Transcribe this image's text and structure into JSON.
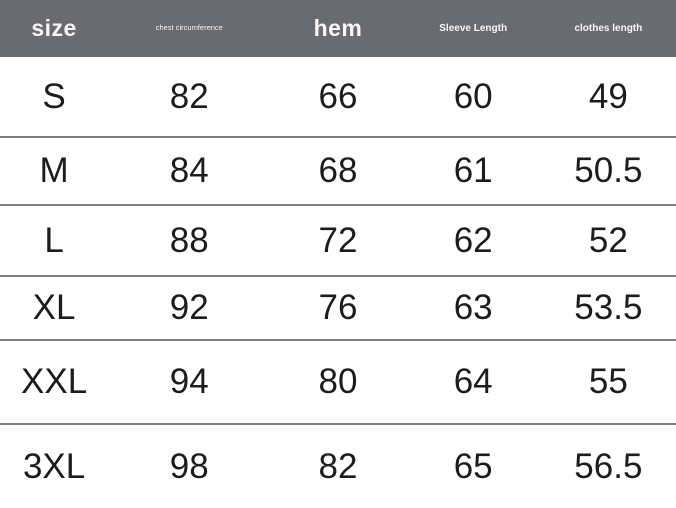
{
  "colors": {
    "header_bg": "#696b70",
    "header_text": "#f7f7f7",
    "body_text": "#1c1c1c",
    "divider": "#7e7e7e",
    "background": "#ffffff"
  },
  "chart_data": {
    "type": "table",
    "title": "",
    "columns": [
      {
        "label": "size",
        "emphasis": "large"
      },
      {
        "label": "chest circumference",
        "emphasis": "small"
      },
      {
        "label": "hem",
        "emphasis": "large"
      },
      {
        "label": "Sleeve Length",
        "emphasis": "medium"
      },
      {
        "label": "clothes length",
        "emphasis": "medium"
      }
    ],
    "rows": [
      [
        "S",
        "82",
        "66",
        "60",
        "49"
      ],
      [
        "M",
        "84",
        "68",
        "61",
        "50.5"
      ],
      [
        "L",
        "88",
        "72",
        "62",
        "52"
      ],
      [
        "XL",
        "92",
        "76",
        "63",
        "53.5"
      ],
      [
        "XXL",
        "94",
        "80",
        "64",
        "55"
      ],
      [
        "3XL",
        "98",
        "82",
        "65",
        "56.5"
      ]
    ]
  }
}
